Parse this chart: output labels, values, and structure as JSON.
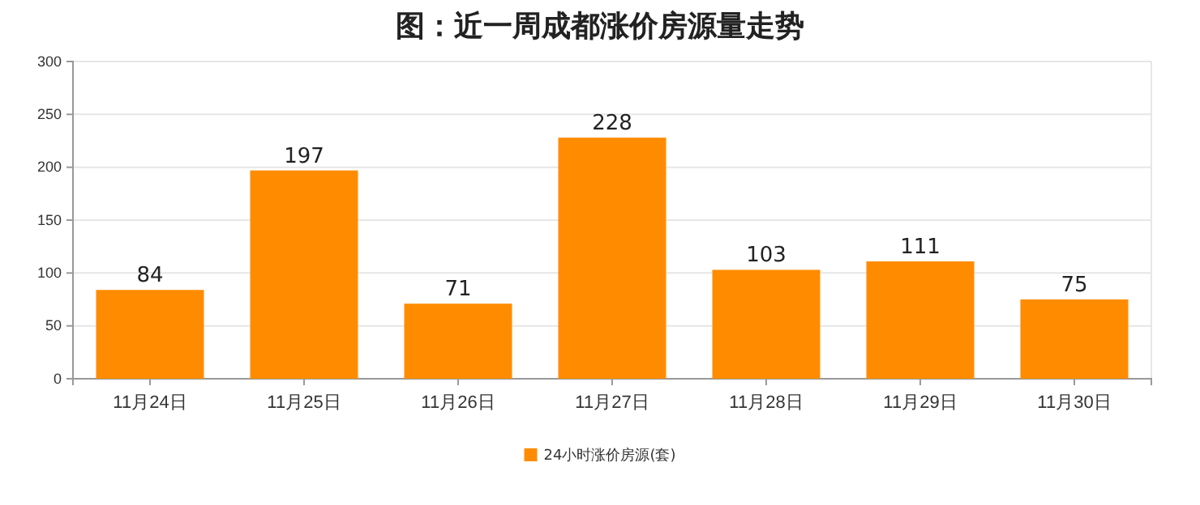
{
  "chart_data": {
    "type": "bar",
    "title": "图：近一周成都涨价房源量走势",
    "categories": [
      "11月24日",
      "11月25日",
      "11月26日",
      "11月27日",
      "11月28日",
      "11月29日",
      "11月30日"
    ],
    "series": [
      {
        "name": "24小时涨价房源(套)",
        "color": "#ff8c00",
        "values": [
          84,
          197,
          71,
          228,
          103,
          111,
          75
        ]
      }
    ],
    "ylim": [
      0,
      300
    ],
    "yticks": [
      0,
      50,
      100,
      150,
      200,
      250,
      300
    ],
    "grid": "y",
    "legend": "bottom",
    "data_labels": true
  }
}
